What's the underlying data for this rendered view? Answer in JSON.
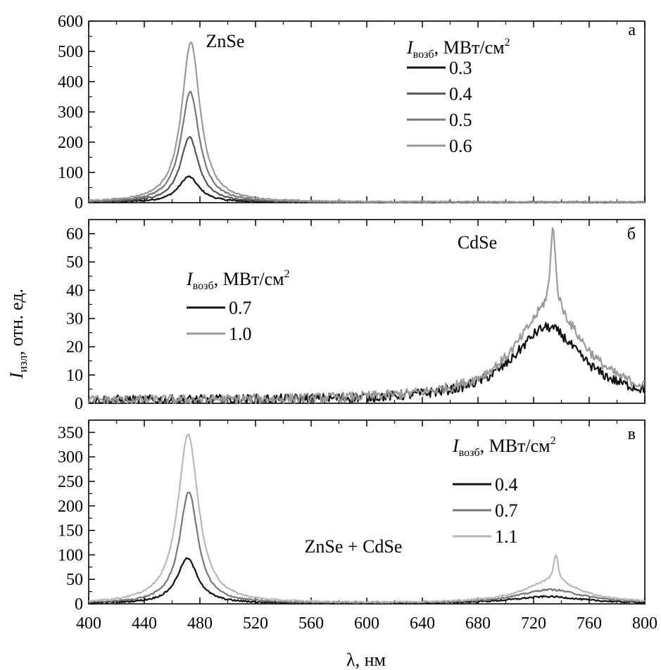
{
  "figure": {
    "ylabel_main": "I",
    "ylabel_sub": "изл",
    "ylabel_rest": ", отн. ед.",
    "xlabel": "λ, нм",
    "x_ticks": [
      "400",
      "440",
      "480",
      "520",
      "560",
      "600",
      "640",
      "680",
      "720",
      "760",
      "800"
    ]
  },
  "chart_data": [
    {
      "type": "line",
      "panel_letter": "а",
      "annotation": "ZnSe",
      "legend_title_main": "I",
      "legend_title_sub": "возб",
      "legend_title_rest": ", МВт/см",
      "legend_title_sup": "2",
      "xlim": [
        400,
        800
      ],
      "ylim": [
        0,
        600
      ],
      "y_ticks": [
        0,
        100,
        200,
        300,
        400,
        500,
        600
      ],
      "series": [
        {
          "name": "0.3",
          "color": "#111111",
          "peak_x": 472,
          "peak_y": 85,
          "width": 9,
          "noise": 3,
          "spike_x": 0,
          "spike_y": 0
        },
        {
          "name": "0.4",
          "color": "#555555",
          "peak_x": 472.5,
          "peak_y": 215,
          "width": 8,
          "noise": 3,
          "spike_x": 0,
          "spike_y": 0
        },
        {
          "name": "0.5",
          "color": "#777777",
          "peak_x": 473,
          "peak_y": 365,
          "width": 8,
          "noise": 3,
          "spike_x": 0,
          "spike_y": 0
        },
        {
          "name": "0.6",
          "color": "#9a9a9a",
          "peak_x": 473.5,
          "peak_y": 530,
          "width": 8,
          "noise": 3,
          "spike_x": 0,
          "spike_y": 0
        }
      ]
    },
    {
      "type": "line",
      "panel_letter": "б",
      "annotation": "CdSe",
      "legend_title_main": "I",
      "legend_title_sub": "возб",
      "legend_title_rest": ", МВт/см",
      "legend_title_sup": "2",
      "xlim": [
        400,
        800
      ],
      "ylim": [
        0,
        65
      ],
      "y_ticks": [
        0,
        10,
        20,
        30,
        40,
        50,
        60
      ],
      "series": [
        {
          "name": "0.7",
          "color": "#111111",
          "peak_x": 730,
          "peak_y": 26,
          "width": 30,
          "noise": 2.2,
          "spike_x": 0,
          "spike_y": 0
        },
        {
          "name": "1.0",
          "color": "#9a9a9a",
          "peak_x": 732,
          "peak_y": 33,
          "width": 30,
          "noise": 2.2,
          "spike_x": 734,
          "spike_y": 30
        }
      ]
    },
    {
      "type": "line",
      "panel_letter": "в",
      "annotation": "ZnSe + CdSe",
      "legend_title_main": "I",
      "legend_title_sub": "возб",
      "legend_title_rest": ", МВт/см",
      "legend_title_sup": "2",
      "xlim": [
        400,
        800
      ],
      "ylim": [
        0,
        375
      ],
      "y_ticks": [
        0,
        50,
        100,
        150,
        200,
        250,
        300,
        350
      ],
      "series": [
        {
          "name": "0.4",
          "color": "#111111",
          "peak_x": 471,
          "peak_y": 92,
          "width": 9,
          "noise": 2,
          "peak2_x": 730,
          "peak2_y": 14,
          "width2": 30,
          "spike_x": 0,
          "spike_y": 0
        },
        {
          "name": "0.7",
          "color": "#777777",
          "peak_x": 472,
          "peak_y": 228,
          "width": 8,
          "noise": 2,
          "peak2_x": 732,
          "peak2_y": 28,
          "width2": 28,
          "spike_x": 0,
          "spike_y": 0
        },
        {
          "name": "1.1",
          "color": "#b8b8b8",
          "peak_x": 471.5,
          "peak_y": 345,
          "width": 9,
          "noise": 2,
          "peak2_x": 733,
          "peak2_y": 45,
          "width2": 25,
          "spike_x": 736,
          "spike_y": 55
        }
      ]
    }
  ]
}
